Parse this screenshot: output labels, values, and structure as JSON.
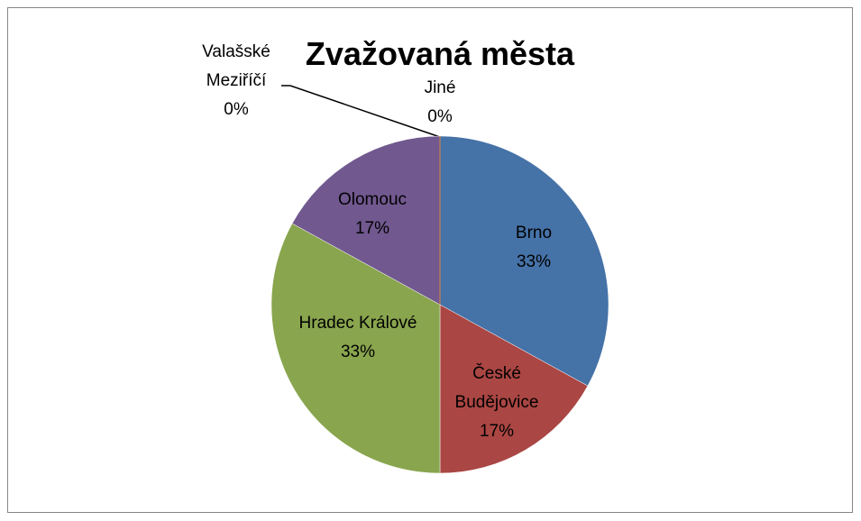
{
  "chart_data": {
    "type": "pie",
    "title": "Zvažovaná města",
    "categories": [
      "Brno",
      "České Budějovice",
      "Hradec Králové",
      "Olomouc",
      "Valašské Meziříčí",
      "Jiné"
    ],
    "values": [
      33,
      17,
      33,
      17,
      0,
      0
    ],
    "value_labels": [
      "33%",
      "17%",
      "33%",
      "17%",
      "0%",
      "0%"
    ],
    "colors": [
      "#4572a7",
      "#aa4643",
      "#89a54e",
      "#71588f",
      "#4198af",
      "#db843d"
    ]
  }
}
